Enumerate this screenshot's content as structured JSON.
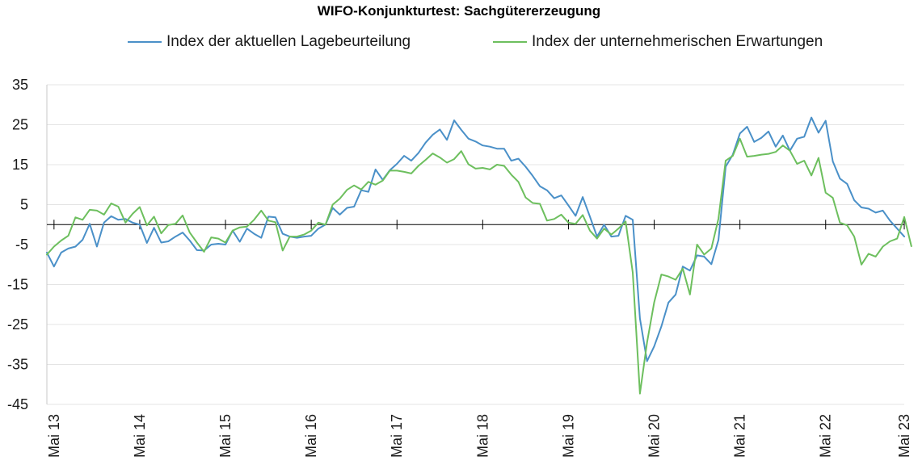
{
  "title": "WIFO-Konjunkturtest: Sachgütererzeugung",
  "chart_data": {
    "type": "line",
    "title": "WIFO-Konjunkturtest: Sachgütererzeugung",
    "xlabel": "",
    "ylabel": "",
    "ylim": [
      -45,
      35
    ],
    "yticks": [
      35,
      25,
      15,
      5,
      -5,
      -15,
      -25,
      -35,
      -45
    ],
    "grid": true,
    "legend_position": "top",
    "x_start": "Apr 13",
    "x_end": "Mai 23",
    "xtick_labels": [
      "Mai 13",
      "Mai 14",
      "Mai 15",
      "Mai 16",
      "Mai 17",
      "Mai 18",
      "Mai 19",
      "Mai 20",
      "Mai 21",
      "Mai 22",
      "Mai 23"
    ],
    "series": [
      {
        "name": "Index der aktuellen Lagebeurteilung",
        "color": "#4a90c8",
        "values": [
          -7,
          -10.5,
          -7,
          -6,
          -5.5,
          -3.8,
          0.2,
          -5.5,
          0.5,
          2.1,
          1.2,
          1.4,
          0.5,
          0,
          -4.6,
          -0.8,
          -4.5,
          -4.2,
          -3,
          -2,
          -4,
          -6.4,
          -6.5,
          -5,
          -4.8,
          -5,
          -1.5,
          -4.3,
          -1,
          -2.3,
          -3.3,
          2,
          1.8,
          -2.3,
          -3,
          -3.3,
          -3,
          -2.8,
          -1,
          0,
          4.2,
          2.5,
          4.2,
          4.5,
          8.6,
          8.2,
          13.8,
          11.2,
          13.6,
          15.2,
          17.2,
          16,
          17.9,
          20.5,
          22.5,
          23.8,
          21.2,
          26.1,
          23.7,
          21.5,
          20.8,
          19.8,
          19.5,
          19,
          19,
          16,
          16.5,
          14.5,
          12.2,
          9.6,
          8.6,
          6.6,
          7.3,
          4.8,
          2.2,
          6.9,
          2,
          -3,
          0,
          -3,
          -2.8,
          2.2,
          1.2,
          -23.5,
          -34.2,
          -30.5,
          -25.5,
          -19.5,
          -17.5,
          -10.5,
          -11.5,
          -7.7,
          -8,
          -9.9,
          -3.8,
          14.5,
          17.5,
          22.8,
          24.5,
          20.7,
          21.7,
          23.3,
          19.5,
          22.3,
          18.5,
          21.5,
          22,
          26.8,
          23,
          26,
          15.8,
          11.5,
          10.2,
          6.1,
          4.3,
          4,
          3,
          3.5,
          1,
          -1,
          -3
        ]
      },
      {
        "name": "Index der unternehmerischen Erwartungen",
        "color": "#6dbf5e",
        "values": [
          -7.5,
          -5.5,
          -4,
          -2.8,
          1.8,
          1.2,
          3.7,
          3.5,
          2.5,
          5.3,
          4.5,
          0.5,
          2.7,
          4.4,
          -0.2,
          2,
          -2.2,
          -0.1,
          0.2,
          2.3,
          -2,
          -4.5,
          -6.8,
          -3.2,
          -3.5,
          -4.5,
          -1.5,
          -0.7,
          -0.5,
          1.2,
          3.5,
          1,
          0.6,
          -6.5,
          -3,
          -3,
          -2.5,
          -1.5,
          0.5,
          0,
          5,
          6.5,
          8.7,
          9.8,
          8.8,
          10.7,
          10,
          11,
          13.5,
          13.5,
          13.2,
          12.8,
          14.7,
          16.2,
          17.8,
          16.8,
          15.5,
          16.4,
          18.4,
          15.1,
          14,
          14.2,
          13.8,
          15,
          14.7,
          12.5,
          10.7,
          6.8,
          5.4,
          5.2,
          1,
          1.4,
          2.5,
          0.5,
          0.2,
          2.4,
          -1.5,
          -3.5,
          -1,
          -2.5,
          -1,
          0.8,
          -12,
          -42.3,
          -29.5,
          -19.5,
          -12.5,
          -13,
          -13.8,
          -11,
          -17.5,
          -5,
          -7.5,
          -6,
          1.5,
          16,
          17.2,
          21.5,
          17,
          17.2,
          17.5,
          17.7,
          18.2,
          19.8,
          18.5,
          15.2,
          16,
          12.3,
          16.7,
          8,
          6.7,
          0.5,
          -0.2,
          -3,
          -10,
          -7.3,
          -8,
          -5.5,
          -4.2,
          -3.5,
          1.9,
          -5.4
        ]
      }
    ]
  }
}
